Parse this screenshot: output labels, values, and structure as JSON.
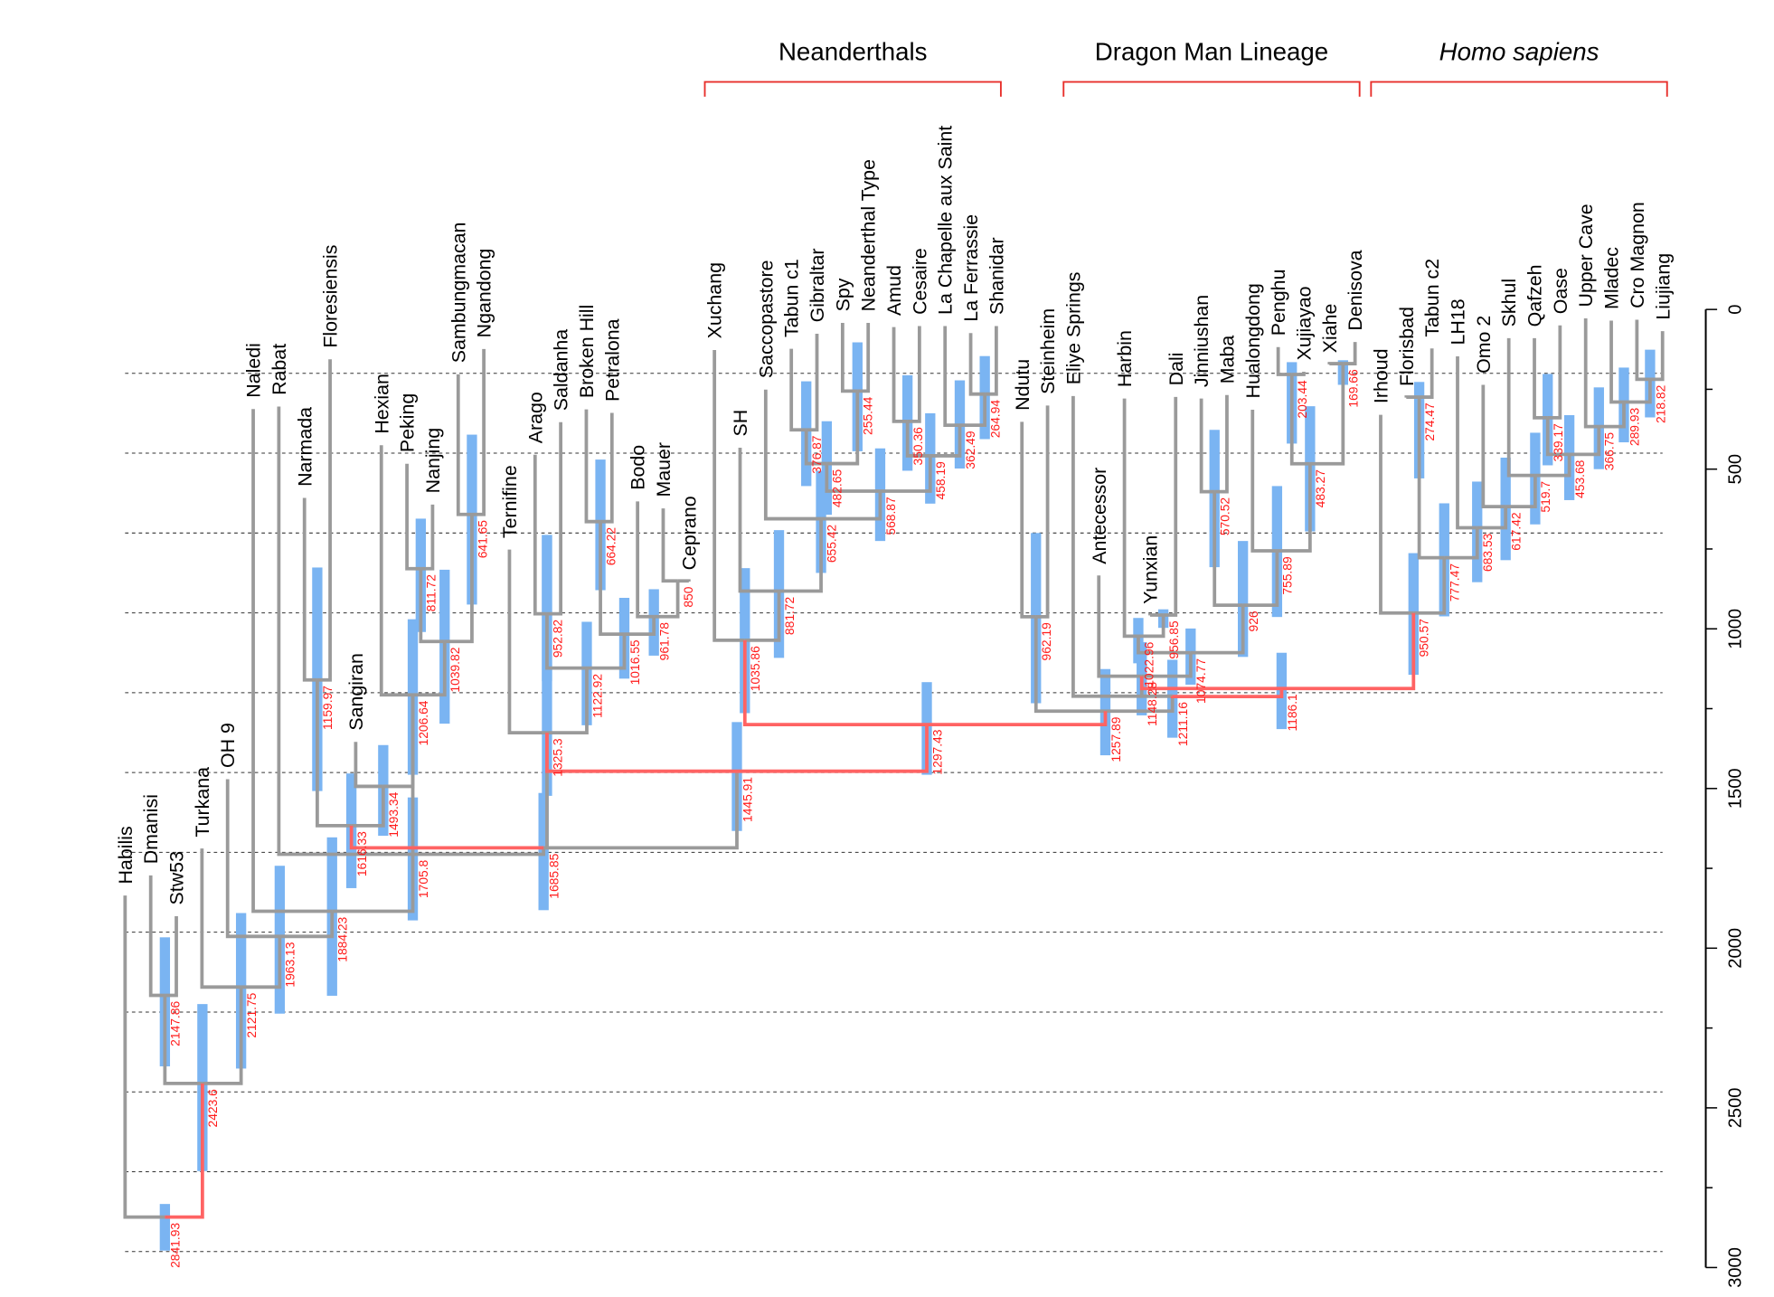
{
  "colors": {
    "branch": "#9a9a9a",
    "highlight_branch": "#ff6363",
    "interval_bar": "#7ab4f2",
    "node_label": "#ff1a1a",
    "bracket": "#e8302c",
    "grid": "#333333"
  },
  "groups": [
    {
      "label": "Neanderthals",
      "italic": false,
      "from": "SH",
      "to": "Shanidar"
    },
    {
      "label": "Dragon Man Lineage",
      "italic": false,
      "from": "Antecessor",
      "to": "Denisova"
    },
    {
      "label": "Homo sapiens",
      "italic": true,
      "from": "Florisbad",
      "to": "Liujiang"
    }
  ],
  "axis": {
    "min": 0,
    "max": 3000,
    "major_ticks": [
      "0",
      "500",
      "1000",
      "1500",
      "2000",
      "2500",
      "3000"
    ],
    "minor_step": 250
  },
  "gridlines": [
    200,
    450,
    700,
    950,
    1200,
    1450,
    1700,
    1950,
    2200,
    2450,
    2700,
    2950
  ],
  "tips": [
    {
      "name": "Habilis",
      "age": 1835
    },
    {
      "name": "Dmanisi",
      "age": 1772
    },
    {
      "name": "Stw53",
      "age": 1900
    },
    {
      "name": "Turkana",
      "age": 1688
    },
    {
      "name": "OH 9",
      "age": 1471
    },
    {
      "name": "Naledi",
      "age": 312
    },
    {
      "name": "Rabat",
      "age": 304
    },
    {
      "name": "Narmada",
      "age": 590
    },
    {
      "name": "Floresiensis",
      "age": 156
    },
    {
      "name": "Sangiran",
      "age": 1354
    },
    {
      "name": "Hexian",
      "age": 425
    },
    {
      "name": "Peking",
      "age": 483
    },
    {
      "name": "Nanjing",
      "age": 611
    },
    {
      "name": "Sambungmacan",
      "age": 203
    },
    {
      "name": "Ngandong",
      "age": 124
    },
    {
      "name": "Ternifine",
      "age": 752
    },
    {
      "name": "Arago",
      "age": 455
    },
    {
      "name": "Saldanha",
      "age": 353
    },
    {
      "name": "Broken Hill",
      "age": 313
    },
    {
      "name": "Petralona",
      "age": 324
    },
    {
      "name": "Bodo",
      "age": 601
    },
    {
      "name": "Mauer",
      "age": 623
    },
    {
      "name": "Ceprano",
      "age": 852
    },
    {
      "name": "Xuchang",
      "age": 127
    },
    {
      "name": "SH",
      "age": 433
    },
    {
      "name": "Saccopastore",
      "age": 251
    },
    {
      "name": "Tabun c1",
      "age": 123
    },
    {
      "name": "Gibraltar",
      "age": 76
    },
    {
      "name": "Spy",
      "age": 42
    },
    {
      "name": "Neanderthal Type",
      "age": 42
    },
    {
      "name": "Amud",
      "age": 55
    },
    {
      "name": "Cesaire",
      "age": 52
    },
    {
      "name": "La Chapelle aux Saint",
      "age": 52
    },
    {
      "name": "La Ferrassie",
      "age": 74
    },
    {
      "name": "Shanidar",
      "age": 52
    },
    {
      "name": "Ndutu",
      "age": 352
    },
    {
      "name": "Steinheim",
      "age": 301
    },
    {
      "name": "Eliye Springs",
      "age": 271
    },
    {
      "name": "Antecessor",
      "age": 833
    },
    {
      "name": "Harbin",
      "age": 279
    },
    {
      "name": "Yunxian",
      "age": 958
    },
    {
      "name": "Dali",
      "age": 274
    },
    {
      "name": "Jinniushan",
      "age": 279
    },
    {
      "name": "Maba",
      "age": 268
    },
    {
      "name": "Hualongdong",
      "age": 314
    },
    {
      "name": "Penghu",
      "age": 118
    },
    {
      "name": "Xujiayao",
      "age": 195
    },
    {
      "name": "Xiahe",
      "age": 172
    },
    {
      "name": "Denisova",
      "age": 102
    },
    {
      "name": "Irhoud",
      "age": 330
    },
    {
      "name": "Florisbad",
      "age": 276
    },
    {
      "name": "Tabun c2",
      "age": 122
    },
    {
      "name": "LH18",
      "age": 147
    },
    {
      "name": "Omo 2",
      "age": 236
    },
    {
      "name": "Skhul",
      "age": 90
    },
    {
      "name": "Qafzeh",
      "age": 90
    },
    {
      "name": "Oase",
      "age": 50
    },
    {
      "name": "Upper Cave",
      "age": 28
    },
    {
      "name": "Mladec",
      "age": 35
    },
    {
      "name": "Cro Magnon",
      "age": 32
    },
    {
      "name": "Liujiang",
      "age": 68
    }
  ],
  "nodes": [
    {
      "id": "n2841",
      "age": 2841.93,
      "label": "2841.93",
      "hpd": [
        2801,
        2947
      ]
    },
    {
      "id": "n2423",
      "age": 2423.6,
      "label": "2423.6",
      "hpd": [
        2175,
        2698
      ]
    },
    {
      "id": "n2147",
      "age": 2147.86,
      "label": "2147.86",
      "hpd": [
        1966,
        2370
      ]
    },
    {
      "id": "n2121",
      "age": 2121.75,
      "label": "2121.75",
      "hpd": [
        1890,
        2377
      ]
    },
    {
      "id": "n1963",
      "age": 1963.13,
      "label": "1963.13",
      "hpd": [
        1742,
        2205
      ]
    },
    {
      "id": "n1884",
      "age": 1884.23,
      "label": "1884.23",
      "hpd": [
        1653,
        2149
      ]
    },
    {
      "id": "n1705",
      "age": 1705.8,
      "label": "1705.8",
      "hpd": [
        1528,
        1913
      ]
    },
    {
      "id": "n1685",
      "age": 1685.85,
      "label": "1685.85",
      "hpd": [
        1514,
        1881
      ]
    },
    {
      "id": "n1616",
      "age": 1616.33,
      "label": "1616.33",
      "hpd": [
        1453,
        1812
      ]
    },
    {
      "id": "n1493",
      "age": 1493.34,
      "label": "1493.34",
      "hpd": [
        1364,
        1648
      ]
    },
    {
      "id": "n1206",
      "age": 1206.64,
      "label": "1206.64",
      "hpd": [
        970,
        1457
      ]
    },
    {
      "id": "n1159",
      "age": 1159.97,
      "label": "1159.97",
      "hpd": [
        808,
        1508
      ]
    },
    {
      "id": "n1039",
      "age": 1039.82,
      "label": "1039.82",
      "hpd": [
        815,
        1297
      ]
    },
    {
      "id": "n811",
      "age": 811.72,
      "label": "811.72",
      "hpd": [
        655,
        1010
      ]
    },
    {
      "id": "n641",
      "age": 641.65,
      "label": "641.65",
      "hpd": [
        392,
        924
      ]
    },
    {
      "id": "n1325",
      "age": 1325.3,
      "label": "1325.3",
      "hpd": [
        706,
        1523
      ]
    },
    {
      "id": "n952",
      "age": 952.82,
      "label": "952.82",
      "hpd": [
        706,
        1164
      ]
    },
    {
      "id": "n1122",
      "age": 1122.92,
      "label": "1122.92",
      "hpd": [
        978,
        1302
      ]
    },
    {
      "id": "n1016",
      "age": 1016.55,
      "label": "1016.55",
      "hpd": [
        903,
        1156
      ]
    },
    {
      "id": "n664",
      "age": 664.22,
      "label": "664.22",
      "hpd": [
        470,
        879
      ]
    },
    {
      "id": "n961",
      "age": 961.78,
      "label": "961.78",
      "hpd": [
        876,
        1084
      ]
    },
    {
      "id": "n850",
      "age": 850,
      "label": "850",
      "hpd": null
    },
    {
      "id": "n1445",
      "age": 1445.91,
      "label": "1445.91",
      "hpd": [
        1292,
        1633
      ]
    },
    {
      "id": "n1297",
      "age": 1297.43,
      "label": "1297.43",
      "hpd": [
        1167,
        1457
      ]
    },
    {
      "id": "n1035",
      "age": 1035.86,
      "label": "1035.86",
      "hpd": [
        810,
        1264
      ]
    },
    {
      "id": "n881",
      "age": 881.72,
      "label": "881.72",
      "hpd": [
        691,
        1091
      ]
    },
    {
      "id": "n655",
      "age": 655.42,
      "label": "655.42",
      "hpd": [
        505,
        825
      ]
    },
    {
      "id": "n568",
      "age": 568.87,
      "label": "568.87",
      "hpd": [
        435,
        725
      ]
    },
    {
      "id": "n482",
      "age": 482.65,
      "label": "482.65",
      "hpd": [
        350,
        643
      ]
    },
    {
      "id": "n376",
      "age": 376.87,
      "label": "376.87",
      "hpd": [
        225,
        553
      ]
    },
    {
      "id": "n255",
      "age": 255.44,
      "label": "255.44",
      "hpd": [
        103,
        444
      ]
    },
    {
      "id": "n458",
      "age": 458.19,
      "label": "458.19",
      "hpd": [
        325,
        608
      ]
    },
    {
      "id": "n350",
      "age": 350.36,
      "label": "350.36",
      "hpd": [
        206,
        505
      ]
    },
    {
      "id": "n362",
      "age": 362.49,
      "label": "362.49",
      "hpd": [
        222,
        498
      ]
    },
    {
      "id": "n264",
      "age": 264.94,
      "label": "264.94",
      "hpd": [
        146,
        406
      ]
    },
    {
      "id": "n1257",
      "age": 1257.89,
      "label": "1257.89",
      "hpd": [
        1126,
        1396
      ]
    },
    {
      "id": "n962",
      "age": 962.19,
      "label": "962.19",
      "hpd": [
        700,
        1233
      ]
    },
    {
      "id": "n1211",
      "age": 1211.16,
      "label": "1211.16",
      "hpd": [
        1097,
        1341
      ]
    },
    {
      "id": "n1148",
      "age": 1148.28,
      "label": "1148.28",
      "hpd": [
        1042,
        1271
      ]
    },
    {
      "id": "n1074",
      "age": 1074.77,
      "label": "1074.77",
      "hpd": [
        999,
        1175
      ]
    },
    {
      "id": "n1022",
      "age": 1022.96,
      "label": "1022.96",
      "hpd": [
        966,
        1108
      ]
    },
    {
      "id": "n956",
      "age": 956.85,
      "label": "956.85",
      "hpd": [
        939,
        997
      ]
    },
    {
      "id": "n926",
      "age": 926,
      "label": "926",
      "hpd": [
        725,
        1088
      ]
    },
    {
      "id": "n570",
      "age": 570.52,
      "label": "570.52",
      "hpd": [
        377,
        807
      ]
    },
    {
      "id": "n755",
      "age": 755.89,
      "label": "755.89",
      "hpd": [
        553,
        963
      ]
    },
    {
      "id": "n483",
      "age": 483.27,
      "label": "483.27",
      "hpd": [
        303,
        695
      ]
    },
    {
      "id": "n203",
      "age": 203.44,
      "label": "203.44",
      "hpd": [
        165,
        420
      ]
    },
    {
      "id": "n169",
      "age": 169.66,
      "label": "169.66",
      "hpd": [
        159,
        236
      ]
    },
    {
      "id": "n1186",
      "age": 1186.1,
      "label": "1186.1",
      "hpd": [
        1075,
        1314
      ]
    },
    {
      "id": "n950",
      "age": 950.57,
      "label": "950.57",
      "hpd": [
        763,
        1144
      ]
    },
    {
      "id": "n777",
      "age": 777.47,
      "label": "777.47",
      "hpd": [
        607,
        961
      ]
    },
    {
      "id": "n274",
      "age": 274.47,
      "label": "274.47",
      "hpd": [
        227,
        529
      ]
    },
    {
      "id": "n683",
      "age": 683.53,
      "label": "683.53",
      "hpd": [
        539,
        854
      ]
    },
    {
      "id": "n617",
      "age": 617.42,
      "label": "617.42",
      "hpd": [
        464,
        785
      ]
    },
    {
      "id": "n519",
      "age": 519.7,
      "label": "519.7",
      "hpd": [
        386,
        673
      ]
    },
    {
      "id": "n453",
      "age": 453.68,
      "label": "453.68",
      "hpd": [
        331,
        597
      ]
    },
    {
      "id": "n339",
      "age": 339.17,
      "label": "339.17",
      "hpd": [
        202,
        488
      ]
    },
    {
      "id": "n366",
      "age": 366.75,
      "label": "366.75",
      "hpd": [
        244,
        500
      ]
    },
    {
      "id": "n289",
      "age": 289.93,
      "label": "289.93",
      "hpd": [
        182,
        416
      ]
    },
    {
      "id": "n218",
      "age": 218.82,
      "label": "218.82",
      "hpd": [
        126,
        338
      ]
    }
  ],
  "edges": [
    {
      "child": "Habilis",
      "parent": "n2841"
    },
    {
      "child": "n2423",
      "parent": "n2841",
      "highlight": true
    },
    {
      "child": "n2147",
      "parent": "n2423"
    },
    {
      "child": "n2121",
      "parent": "n2423"
    },
    {
      "child": "Dmanisi",
      "parent": "n2147"
    },
    {
      "child": "Stw53",
      "parent": "n2147"
    },
    {
      "child": "Turkana",
      "parent": "n2121"
    },
    {
      "child": "n1963",
      "parent": "n2121"
    },
    {
      "child": "OH 9",
      "parent": "n1963"
    },
    {
      "child": "n1884",
      "parent": "n1963"
    },
    {
      "child": "Naledi",
      "parent": "n1884"
    },
    {
      "child": "n1705",
      "parent": "n1884"
    },
    {
      "child": "Rabat",
      "parent": "n1705"
    },
    {
      "child": "n1685",
      "parent": "n1705"
    },
    {
      "child": "n1206",
      "parent": "n1705"
    },
    {
      "child": "n1325",
      "parent": "n1685"
    },
    {
      "child": "n1445",
      "parent": "n1685"
    },
    {
      "child": "n1616",
      "parent": "n1685",
      "highlight": true
    },
    {
      "child": "n1159",
      "parent": "n1616"
    },
    {
      "child": "n1493",
      "parent": "n1616"
    },
    {
      "child": "Narmada",
      "parent": "n1159"
    },
    {
      "child": "Floresiensis",
      "parent": "n1159"
    },
    {
      "child": "Sangiran",
      "parent": "n1493"
    },
    {
      "child": "n1206",
      "parent": "n1493"
    },
    {
      "child": "Hexian",
      "parent": "n1206"
    },
    {
      "child": "n1039",
      "parent": "n1206"
    },
    {
      "child": "n811",
      "parent": "n1039"
    },
    {
      "child": "n641",
      "parent": "n1039"
    },
    {
      "child": "Peking",
      "parent": "n811"
    },
    {
      "child": "Nanjing",
      "parent": "n811"
    },
    {
      "child": "Sambungmacan",
      "parent": "n641"
    },
    {
      "child": "Ngandong",
      "parent": "n641"
    },
    {
      "child": "Ternifine",
      "parent": "n1325"
    },
    {
      "child": "n1122",
      "parent": "n1325"
    },
    {
      "child": "n952",
      "parent": "n1122"
    },
    {
      "child": "n1016",
      "parent": "n1122"
    },
    {
      "child": "Arago",
      "parent": "n952"
    },
    {
      "child": "Saldanha",
      "parent": "n952"
    },
    {
      "child": "n664",
      "parent": "n1016"
    },
    {
      "child": "n961",
      "parent": "n1016"
    },
    {
      "child": "Broken Hill",
      "parent": "n664"
    },
    {
      "child": "Petralona",
      "parent": "n664"
    },
    {
      "child": "Bodo",
      "parent": "n961"
    },
    {
      "child": "n850",
      "parent": "n961"
    },
    {
      "child": "Mauer",
      "parent": "n850"
    },
    {
      "child": "Ceprano",
      "parent": "n850"
    },
    {
      "child": "n1325",
      "parent": "n1297",
      "via_age": 1445.91,
      "highlight": true
    },
    {
      "child": "n1035",
      "parent": "n1257",
      "via_age": 1300,
      "highlight": true
    },
    {
      "child": "Xuchang",
      "parent": "n1035"
    },
    {
      "child": "n881",
      "parent": "n1035"
    },
    {
      "child": "SH",
      "parent": "n881"
    },
    {
      "child": "n655",
      "parent": "n881"
    },
    {
      "child": "Saccopastore",
      "parent": "n655"
    },
    {
      "child": "n568",
      "parent": "n655"
    },
    {
      "child": "n482",
      "parent": "n568"
    },
    {
      "child": "n458",
      "parent": "n568"
    },
    {
      "child": "n376",
      "parent": "n482"
    },
    {
      "child": "n255",
      "parent": "n482"
    },
    {
      "child": "Tabun c1",
      "parent": "n376"
    },
    {
      "child": "Gibraltar",
      "parent": "n376"
    },
    {
      "child": "Spy",
      "parent": "n255"
    },
    {
      "child": "Neanderthal Type",
      "parent": "n255"
    },
    {
      "child": "n350",
      "parent": "n458"
    },
    {
      "child": "n362",
      "parent": "n458"
    },
    {
      "child": "Amud",
      "parent": "n350"
    },
    {
      "child": "Cesaire",
      "parent": "n350"
    },
    {
      "child": "La Chapelle aux Saint",
      "parent": "n362"
    },
    {
      "child": "n264",
      "parent": "n362"
    },
    {
      "child": "La Ferrassie",
      "parent": "n264"
    },
    {
      "child": "Shanidar",
      "parent": "n264"
    },
    {
      "child": "n962",
      "parent": "n1257"
    },
    {
      "child": "n1211",
      "parent": "n1257"
    },
    {
      "child": "Ndutu",
      "parent": "n962"
    },
    {
      "child": "Steinheim",
      "parent": "n962"
    },
    {
      "child": "Eliye Springs",
      "parent": "n1211"
    },
    {
      "child": "n1148",
      "parent": "n1211"
    },
    {
      "child": "Antecessor",
      "parent": "n1148"
    },
    {
      "child": "n1074",
      "parent": "n1148"
    },
    {
      "child": "n1022",
      "parent": "n1074"
    },
    {
      "child": "n926",
      "parent": "n1074"
    },
    {
      "child": "Harbin",
      "parent": "n1022"
    },
    {
      "child": "n956",
      "parent": "n1022"
    },
    {
      "child": "Yunxian",
      "parent": "n956"
    },
    {
      "child": "Dali",
      "parent": "n956"
    },
    {
      "child": "n570",
      "parent": "n926"
    },
    {
      "child": "n755",
      "parent": "n926"
    },
    {
      "child": "Jinniushan",
      "parent": "n570"
    },
    {
      "child": "Maba",
      "parent": "n570"
    },
    {
      "child": "Hualongdong",
      "parent": "n755"
    },
    {
      "child": "n483",
      "parent": "n755"
    },
    {
      "child": "n203",
      "parent": "n483"
    },
    {
      "child": "n169",
      "parent": "n483"
    },
    {
      "child": "Penghu",
      "parent": "n203"
    },
    {
      "child": "Xujiayao",
      "parent": "n203"
    },
    {
      "child": "Xiahe",
      "parent": "n169"
    },
    {
      "child": "Denisova",
      "parent": "n169"
    },
    {
      "child": "n1148",
      "parent": "n950",
      "via_age": 1187,
      "highlight": true
    },
    {
      "child": "n1211",
      "parent": "n1186",
      "via_age": 1212,
      "highlight": true
    },
    {
      "child": "Irhoud",
      "parent": "n950"
    },
    {
      "child": "n777",
      "parent": "n950"
    },
    {
      "child": "n274",
      "parent": "n777"
    },
    {
      "child": "n683",
      "parent": "n777"
    },
    {
      "child": "Florisbad",
      "parent": "n274"
    },
    {
      "child": "Tabun c2",
      "parent": "n274"
    },
    {
      "child": "LH18",
      "parent": "n683"
    },
    {
      "child": "n617",
      "parent": "n683"
    },
    {
      "child": "Omo 2",
      "parent": "n617"
    },
    {
      "child": "n519",
      "parent": "n617"
    },
    {
      "child": "Skhul",
      "parent": "n519"
    },
    {
      "child": "n453",
      "parent": "n519"
    },
    {
      "child": "n339",
      "parent": "n453"
    },
    {
      "child": "n366",
      "parent": "n453"
    },
    {
      "child": "Qafzeh",
      "parent": "n339"
    },
    {
      "child": "Oase",
      "parent": "n339"
    },
    {
      "child": "Upper Cave",
      "parent": "n366"
    },
    {
      "child": "n289",
      "parent": "n366"
    },
    {
      "child": "Mladec",
      "parent": "n289"
    },
    {
      "child": "n218",
      "parent": "n289"
    },
    {
      "child": "Cro Magnon",
      "parent": "n218"
    },
    {
      "child": "Liujiang",
      "parent": "n218"
    }
  ]
}
